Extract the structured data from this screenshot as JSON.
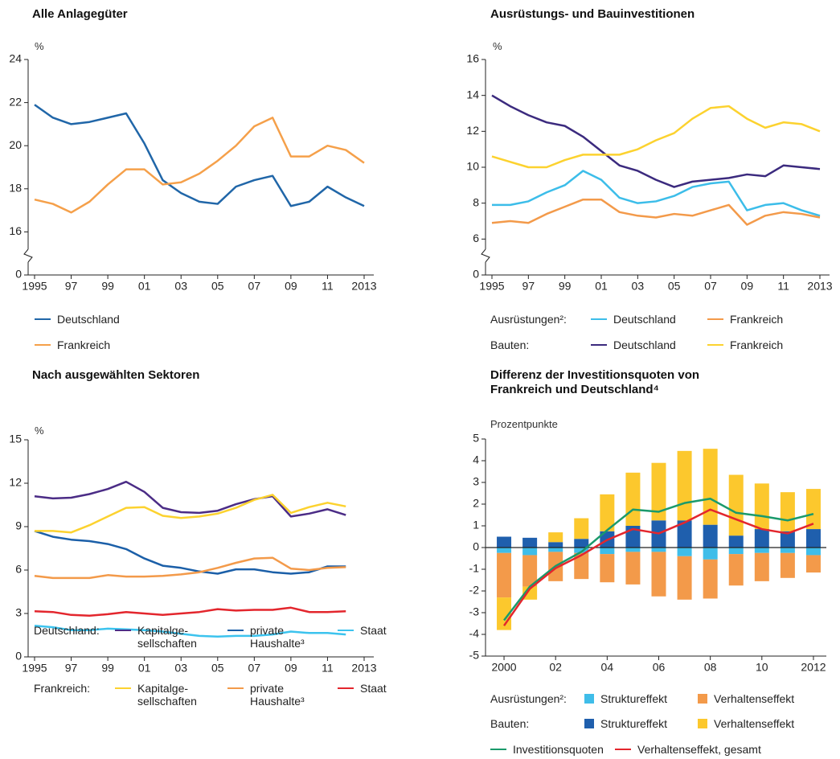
{
  "chart_data": [
    {
      "type": "line",
      "title": "Alle Anlagegüter",
      "y_label": "%",
      "axis_break": true,
      "xlim": [
        1995,
        2013
      ],
      "xticks": [
        1995,
        {
          "value": 1997,
          "label": "97"
        },
        {
          "value": 1999,
          "label": "99"
        },
        {
          "value": 2001,
          "label": "01"
        },
        {
          "value": 2003,
          "label": "03"
        },
        {
          "value": 2005,
          "label": "05"
        },
        {
          "value": 2007,
          "label": "07"
        },
        {
          "value": 2009,
          "label": "09"
        },
        {
          "value": 2011,
          "label": "11"
        },
        2013
      ],
      "ylim": [
        14,
        24
      ],
      "yticks": [
        0,
        16,
        18,
        20,
        22,
        24
      ],
      "x": [
        1995,
        1996,
        1997,
        1998,
        1999,
        2000,
        2001,
        2002,
        2003,
        2004,
        2005,
        2006,
        2007,
        2008,
        2009,
        2010,
        2011,
        2012,
        2013
      ],
      "series": [
        {
          "name": "Deutschland",
          "color": "#2066a8",
          "values": [
            21.9,
            21.3,
            21.0,
            21.1,
            21.3,
            21.5,
            20.1,
            18.4,
            17.8,
            17.4,
            17.3,
            18.1,
            18.4,
            18.6,
            17.2,
            17.4,
            18.1,
            17.6,
            17.2
          ]
        },
        {
          "name": "Frankreich",
          "color": "#f5a04a",
          "values": [
            17.5,
            17.3,
            16.9,
            17.4,
            18.2,
            18.9,
            18.9,
            18.2,
            18.3,
            18.7,
            19.3,
            20.0,
            20.9,
            21.3,
            19.5,
            19.5,
            20.0,
            19.8,
            19.2
          ]
        }
      ]
    },
    {
      "type": "line",
      "title": "Ausrüstungs- und Bauinvestitionen",
      "y_label": "%",
      "axis_break": true,
      "xlim": [
        1995,
        2013
      ],
      "xticks": [
        1995,
        {
          "value": 1997,
          "label": "97"
        },
        {
          "value": 1999,
          "label": "99"
        },
        {
          "value": 2001,
          "label": "01"
        },
        {
          "value": 2003,
          "label": "03"
        },
        {
          "value": 2005,
          "label": "05"
        },
        {
          "value": 2007,
          "label": "07"
        },
        {
          "value": 2009,
          "label": "09"
        },
        {
          "value": 2011,
          "label": "11"
        },
        2013
      ],
      "ylim": [
        4,
        16
      ],
      "yticks": [
        0,
        6,
        8,
        10,
        12,
        14,
        16
      ],
      "x": [
        1995,
        1996,
        1997,
        1998,
        1999,
        2000,
        2001,
        2002,
        2003,
        2004,
        2005,
        2006,
        2007,
        2008,
        2009,
        2010,
        2011,
        2012,
        2013
      ],
      "groups": [
        {
          "label": "Ausrüstungen²:",
          "series": [
            {
              "name": "Deutschland",
              "color": "#3cbde9",
              "values": [
                7.9,
                7.9,
                8.1,
                8.6,
                9.0,
                9.8,
                9.3,
                8.3,
                8.0,
                8.1,
                8.4,
                8.9,
                9.1,
                9.2,
                7.6,
                7.9,
                8.0,
                7.6,
                7.3
              ]
            },
            {
              "name": "Frankreich",
              "color": "#f39a4a",
              "values": [
                6.9,
                7.0,
                6.9,
                7.4,
                7.8,
                8.2,
                8.2,
                7.5,
                7.3,
                7.2,
                7.4,
                7.3,
                7.6,
                7.9,
                6.8,
                7.3,
                7.5,
                7.4,
                7.2
              ]
            }
          ]
        },
        {
          "label": "Bauten:",
          "series": [
            {
              "name": "Deutschland",
              "color": "#3b2a7e",
              "values": [
                14.0,
                13.4,
                12.9,
                12.5,
                12.3,
                11.7,
                10.9,
                10.1,
                9.8,
                9.3,
                8.9,
                9.2,
                9.3,
                9.4,
                9.6,
                9.5,
                10.1,
                10.0,
                9.9
              ]
            },
            {
              "name": "Frankreich",
              "color": "#fcd22f",
              "values": [
                10.6,
                10.3,
                10.0,
                10.0,
                10.4,
                10.7,
                10.7,
                10.7,
                11.0,
                11.5,
                11.9,
                12.7,
                13.3,
                13.4,
                12.7,
                12.2,
                12.5,
                12.4,
                12.0
              ]
            }
          ]
        }
      ]
    },
    {
      "type": "line",
      "title": "Nach ausgewählten Sektoren",
      "y_label": "%",
      "xlim": [
        1995,
        2013
      ],
      "xticks": [
        1995,
        {
          "value": 1997,
          "label": "97"
        },
        {
          "value": 1999,
          "label": "99"
        },
        {
          "value": 2001,
          "label": "01"
        },
        {
          "value": 2003,
          "label": "03"
        },
        {
          "value": 2005,
          "label": "05"
        },
        {
          "value": 2007,
          "label": "07"
        },
        {
          "value": 2009,
          "label": "09"
        },
        {
          "value": 2011,
          "label": "11"
        },
        2013
      ],
      "ylim": [
        0,
        15
      ],
      "yticks": [
        0,
        3,
        6,
        9,
        12,
        15
      ],
      "x": [
        1995,
        1996,
        1997,
        1998,
        1999,
        2000,
        2001,
        2002,
        2003,
        2004,
        2005,
        2006,
        2007,
        2008,
        2009,
        2010,
        2011,
        2012
      ],
      "groups": [
        {
          "label": "Deutschland:",
          "series": [
            {
              "name": "Kapitalge-\nsellschaften",
              "color": "#4b2c86",
              "values": [
                11.1,
                10.95,
                11.0,
                11.25,
                11.6,
                12.1,
                11.4,
                10.3,
                10.0,
                9.95,
                10.1,
                10.55,
                10.9,
                11.1,
                9.7,
                9.9,
                10.2,
                9.8
              ]
            },
            {
              "name": "private\nHaushalte³",
              "color": "#1b5fa8",
              "values": [
                8.7,
                8.3,
                8.1,
                8.0,
                7.8,
                7.45,
                6.8,
                6.3,
                6.15,
                5.9,
                5.75,
                6.05,
                6.05,
                5.85,
                5.75,
                5.85,
                6.25,
                6.25
              ]
            },
            {
              "name": "Staat",
              "color": "#3cc3ee",
              "values": [
                2.15,
                2.05,
                1.85,
                1.85,
                1.95,
                1.9,
                1.85,
                1.75,
                1.6,
                1.45,
                1.4,
                1.45,
                1.45,
                1.55,
                1.75,
                1.65,
                1.65,
                1.55
              ]
            }
          ]
        },
        {
          "label": "Frankreich:",
          "series": [
            {
              "name": "Kapitalge-\nsellschaften",
              "color": "#fcd22f",
              "values": [
                8.7,
                8.7,
                8.6,
                9.1,
                9.7,
                10.3,
                10.35,
                9.75,
                9.6,
                9.7,
                9.9,
                10.3,
                10.85,
                11.2,
                9.95,
                10.35,
                10.65,
                10.4
              ]
            },
            {
              "name": "private\nHaushalte³",
              "color": "#f39a4a",
              "values": [
                5.6,
                5.45,
                5.45,
                5.45,
                5.65,
                5.55,
                5.55,
                5.6,
                5.7,
                5.85,
                6.15,
                6.5,
                6.8,
                6.85,
                6.1,
                6.0,
                6.15,
                6.2
              ]
            },
            {
              "name": "Staat",
              "color": "#e3262d",
              "values": [
                3.15,
                3.1,
                2.9,
                2.85,
                2.95,
                3.1,
                3.0,
                2.9,
                3.0,
                3.1,
                3.3,
                3.2,
                3.25,
                3.25,
                3.4,
                3.1,
                3.1,
                3.15
              ]
            }
          ]
        }
      ]
    },
    {
      "type": "stacked_bar_line",
      "title": "Differenz der Investitionsquoten von\nFrankreich und Deutschland⁴",
      "y_label": "Prozentpunkte",
      "categories": [
        "2000",
        null,
        "02",
        null,
        "04",
        null,
        "06",
        null,
        "08",
        null,
        "10",
        null,
        "2012"
      ],
      "ylim": [
        -5,
        5
      ],
      "yticks": [
        5,
        4,
        3,
        2,
        1,
        0,
        -1,
        -2,
        -3,
        -4,
        -5
      ],
      "groups": [
        {
          "label": "Ausrüstungen²:",
          "series": [
            {
              "name": "Struktureffekt",
              "color": "#3fbde9",
              "values": [
                -0.25,
                -0.35,
                -0.2,
                -0.25,
                -0.3,
                -0.2,
                -0.2,
                -0.4,
                -0.55,
                -0.3,
                -0.25,
                -0.25,
                -0.35
              ]
            },
            {
              "name": "Verhaltenseffekt",
              "color": "#f39a4a",
              "values": [
                -2.05,
                -1.45,
                -1.35,
                -1.2,
                -1.3,
                -1.5,
                -2.05,
                -2.0,
                -1.8,
                -1.45,
                -1.3,
                -1.15,
                -0.8
              ]
            }
          ]
        },
        {
          "label": "Bauten:",
          "series": [
            {
              "name": "Struktureffekt",
              "color": "#1f5fad",
              "values": [
                0.5,
                0.45,
                0.25,
                0.4,
                0.75,
                1.0,
                1.25,
                1.25,
                1.05,
                0.55,
                0.85,
                0.75,
                0.85
              ]
            },
            {
              "name": "Verhaltenseffekt",
              "color": "#fcc82d",
              "values": [
                -1.5,
                -0.6,
                0.45,
                0.95,
                1.7,
                2.45,
                2.65,
                3.2,
                3.5,
                2.8,
                2.1,
                1.8,
                1.85
              ]
            }
          ]
        }
      ],
      "lines": [
        {
          "name": "Investitionsquoten",
          "color": "#1a9a6b",
          "values": [
            -3.35,
            -1.8,
            -0.85,
            -0.2,
            0.8,
            1.75,
            1.65,
            2.05,
            2.25,
            1.6,
            1.45,
            1.25,
            1.55
          ]
        },
        {
          "name": "Verhaltenseffekt, gesamt",
          "color": "#e3262d",
          "values": [
            -3.6,
            -1.9,
            -0.95,
            -0.35,
            0.35,
            0.85,
            0.65,
            1.15,
            1.75,
            1.3,
            0.85,
            0.65,
            1.1
          ]
        }
      ]
    }
  ]
}
